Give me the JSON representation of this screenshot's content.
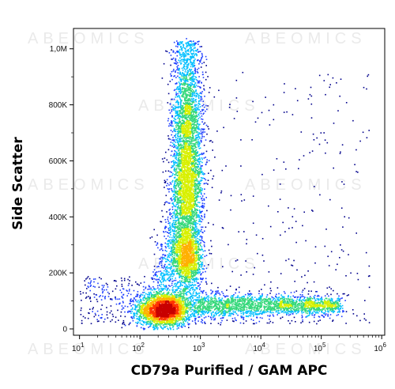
{
  "chart_data": {
    "type": "scatter",
    "title": "",
    "xlabel": "CD79a Purified / GAM APC",
    "ylabel": "Side Scatter",
    "x_scale": "log",
    "xlim": [
      10,
      1000000
    ],
    "ylim": [
      0,
      1050000
    ],
    "grid": false,
    "legend": "none",
    "x_ticks": [
      {
        "value": 10,
        "base": "10",
        "exp": "1"
      },
      {
        "value": 100,
        "base": "10",
        "exp": "2"
      },
      {
        "value": 1000,
        "base": "10",
        "exp": "3"
      },
      {
        "value": 10000,
        "base": "10",
        "exp": "4"
      },
      {
        "value": 100000,
        "base": "10",
        "exp": "5"
      },
      {
        "value": 1000000,
        "base": "10",
        "exp": "6"
      }
    ],
    "y_ticks": [
      {
        "value": 0,
        "label": "0"
      },
      {
        "value": 200000,
        "label": "200K"
      },
      {
        "value": 400000,
        "label": "400K"
      },
      {
        "value": 600000,
        "label": "600K"
      },
      {
        "value": 800000,
        "label": "800K"
      },
      {
        "value": 1000000,
        "label": "1,0M"
      }
    ],
    "populations": [
      {
        "x_center": 250,
        "y_center": 70000,
        "log_x_spread": 0.22,
        "y_spread": 30000,
        "density": "highest",
        "color": "#e60000"
      },
      {
        "x_center": 600,
        "y_center": 250000,
        "log_x_spread": 0.12,
        "y_spread": 60000,
        "density": "high",
        "color": "#ffd200"
      },
      {
        "x_center": 600,
        "y_center": 560000,
        "log_x_spread": 0.13,
        "y_spread": 120000,
        "density": "high",
        "color": "#4caf50"
      },
      {
        "x_center": 30000,
        "y_center": 85000,
        "log_x_spread": 0.6,
        "y_spread": 25000,
        "density": "medium",
        "color": "#1a9bd7"
      }
    ],
    "density_colors": [
      "#00008b",
      "#1f3fff",
      "#00bfff",
      "#35d87b",
      "#d8f000",
      "#ffb000",
      "#ff3300",
      "#c80000"
    ]
  },
  "watermark_text": "ABEOMICS"
}
